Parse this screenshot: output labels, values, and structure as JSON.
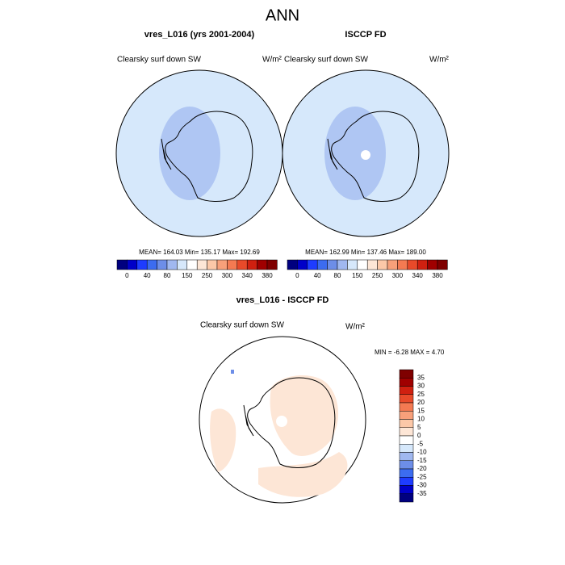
{
  "title": "ANN",
  "panels": [
    {
      "title": "vres_L016 (yrs 2001-2004)",
      "variable": "Clearsky surf down SW",
      "units": "W/m²",
      "stats": "MEAN= 164.03  Min= 135.17  Max= 192.69",
      "colorbar_labels": [
        0,
        40,
        80,
        150,
        250,
        300,
        340,
        380
      ]
    },
    {
      "title": "ISCCP FD",
      "variable": "Clearsky surf down SW",
      "units": "W/m²",
      "stats": "MEAN= 162.99  Min= 137.46  Max= 189.00",
      "colorbar_labels": [
        0,
        40,
        80,
        150,
        250,
        300,
        340,
        380
      ]
    }
  ],
  "difference": {
    "title": "vres_L016 - ISCCP FD",
    "variable": "Clearsky surf down SW",
    "units": "W/m²",
    "stats": "MIN =  -6.28 MAX =   4.70",
    "colorbar_labels": [
      35,
      30,
      25,
      20,
      15,
      10,
      5,
      0,
      -5,
      -10,
      -15,
      -20,
      -25,
      -30,
      -35
    ]
  }
}
